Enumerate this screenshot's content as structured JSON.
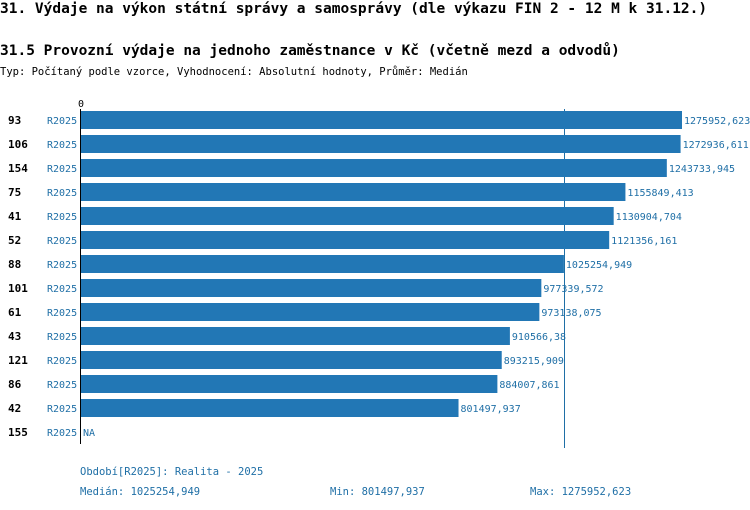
{
  "header": {
    "title": "31. Výdaje na výkon státní správy a samosprávy (dle výkazu FIN 2 - 12 M k 31.12.)",
    "subtitle": "31.5 Provozní výdaje na jednoho zaměstnance v Kč (včetně mezd a odvodů)",
    "type_line": "Typ: Počítaný podle vzorce, Vyhodnocení: Absolutní hodnoty, Průměr: Medián"
  },
  "chart_data": {
    "type": "bar",
    "orientation": "horizontal",
    "axis_zero_label": "0",
    "xlim": [
      0,
      1275952.623
    ],
    "median_line": 1025254.949,
    "series_label": "R2025",
    "categories": [
      "93",
      "106",
      "154",
      "75",
      "41",
      "52",
      "88",
      "101",
      "61",
      "43",
      "121",
      "86",
      "42",
      "155"
    ],
    "values": [
      1275952.623,
      1272936.611,
      1243733.945,
      1155849.413,
      1130904.704,
      1121356.161,
      1025254.949,
      977339.572,
      973138.075,
      910566.38,
      893215.909,
      884007.861,
      801497.937,
      null
    ],
    "value_labels": [
      "1275952,623",
      "1272936,611",
      "1243733,945",
      "1155849,413",
      "1130904,704",
      "1121356,161",
      "1025254,949",
      "977339,572",
      "973138,075",
      "910566,38",
      "893215,909",
      "884007,861",
      "801497,937",
      "NA"
    ],
    "colors": {
      "bar": "#2277b5",
      "label": "#1f6fa6",
      "median": "#1f6fa6",
      "axis": "#000000"
    }
  },
  "footer": {
    "period": "Období[R2025]: Realita - 2025",
    "median": "Medián: 1025254,949",
    "min": "Min: 801497,937",
    "max": "Max: 1275952,623"
  }
}
